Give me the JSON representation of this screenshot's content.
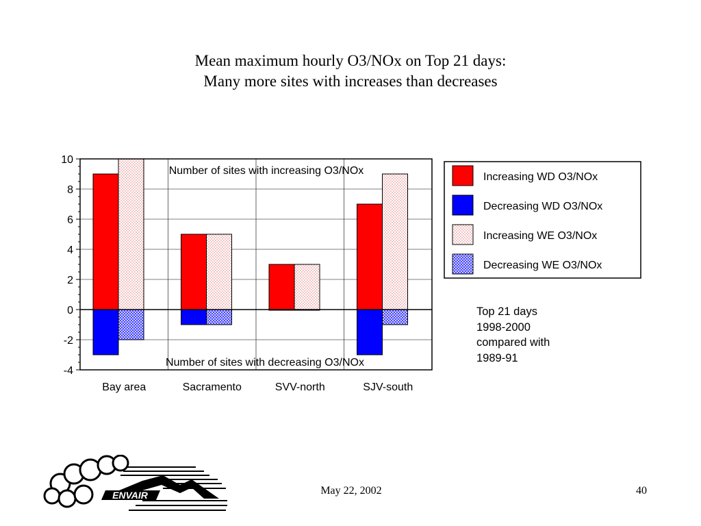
{
  "title": {
    "line1": "Mean maximum hourly O3/NOx on Top 21 days:",
    "line2": "Many more sites with increases than decreases"
  },
  "chart_data": {
    "type": "bar",
    "categories": [
      "Bay area",
      "Sacramento",
      "SVV-north",
      "SJV-south"
    ],
    "series": [
      {
        "name": "Increasing WD O3/NOx",
        "values": [
          9,
          5,
          3,
          7
        ],
        "color": "#ff0000",
        "pattern": "solid"
      },
      {
        "name": "Decreasing WD O3/NOx",
        "values": [
          -3,
          -1,
          0,
          -3
        ],
        "color": "#0000ff",
        "pattern": "solid"
      },
      {
        "name": "Increasing WE O3/NOx",
        "values": [
          10,
          5,
          3,
          9
        ],
        "color": "#ff9999",
        "pattern": "light-dotted"
      },
      {
        "name": "Decreasing WE O3/NOx",
        "values": [
          -2,
          -1,
          0,
          -1
        ],
        "color": "#4a4aff",
        "pattern": "blue-hatched"
      }
    ],
    "bar_layout": "Increasing and decreasing bars of the same day type share an x offset; WD left, WE right",
    "ylim": [
      -4,
      10
    ],
    "yticks": [
      10,
      8,
      6,
      4,
      2,
      0,
      -2,
      -4
    ],
    "grid": true,
    "legend_position": "right",
    "annotations": {
      "top": "Number of sites with increasing O3/NOx",
      "bottom": "Number of sites with decreasing O3/NOx"
    }
  },
  "side_note": [
    "Top 21 days",
    "1998-2000",
    "compared with",
    "1989-91"
  ],
  "footer": {
    "date": "May 22, 2002",
    "page": "40",
    "logo_text": "ENVAIR"
  }
}
